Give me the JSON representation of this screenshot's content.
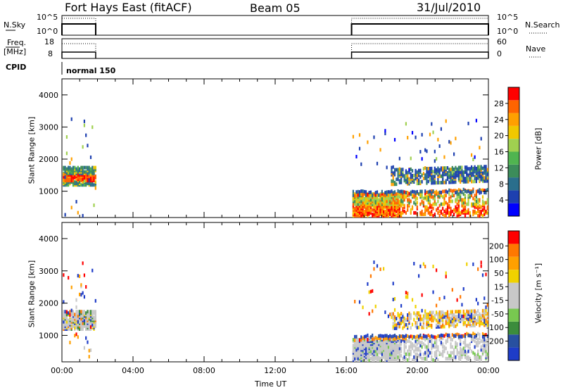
{
  "header": {
    "station": "Fort Hays East (fitACF)",
    "beam": "Beam 05",
    "date": "31/Jul/2010"
  },
  "left_labels": {
    "nsky": "N.Sky",
    "freq": "Freq.",
    "freq_unit": "[MHz]",
    "cpid": "CPID"
  },
  "right_labels": {
    "nsearch": "N.Search",
    "nave": "Nave"
  },
  "panel_labels": {
    "nsky_ticks": [
      "10^5",
      "10^0"
    ],
    "nsearch_ticks": [
      "10^5",
      "10^0"
    ],
    "freq_ticks": [
      "18",
      "8"
    ],
    "nave_ticks": [
      "60",
      "0"
    ],
    "cpid_text": "normal 150"
  },
  "chart_data": [
    {
      "type": "heatmap",
      "name": "power",
      "ylabel": "Slant Range [km]",
      "xlabel": "Time UT",
      "xticks": [
        "00:00",
        "04:00",
        "08:00",
        "12:00",
        "16:00",
        "20:00",
        "00:00"
      ],
      "xlim_hours": [
        0,
        24
      ],
      "yticks": [
        1000,
        2000,
        3000,
        4000
      ],
      "ylim": [
        180,
        4500
      ],
      "colorbar_label": "Power [dB]",
      "colorbar_ticks": [
        "4",
        "8",
        "12",
        "16",
        "20",
        "24",
        "28"
      ],
      "colorbar_colors": [
        "#0000ff",
        "#1e40b0",
        "#2a6e8c",
        "#3c8c5a",
        "#50b450",
        "#a0d050",
        "#f0c800",
        "#ffa000",
        "#ff6400",
        "#ff0000"
      ],
      "coverage_hours": [
        [
          0.0,
          1.9
        ],
        [
          16.3,
          24.0
        ]
      ]
    },
    {
      "type": "heatmap",
      "name": "velocity",
      "ylabel": "Slant Range [km]",
      "xlabel": "Time UT",
      "xticks": [
        "00:00",
        "04:00",
        "08:00",
        "12:00",
        "16:00",
        "20:00",
        "00:00"
      ],
      "xlim_hours": [
        0,
        24
      ],
      "yticks": [
        1000,
        2000,
        3000,
        4000
      ],
      "ylim": [
        180,
        4500
      ],
      "colorbar_label": "Velocity [m s⁻¹]",
      "colorbar_ticks": [
        "200",
        "100",
        "50",
        "15",
        "-15",
        "-50",
        "-100",
        "-200"
      ],
      "colorbar_colors": [
        "#1e3cc8",
        "#2850a0",
        "#3c8c3c",
        "#78c850",
        "#c8c8c8",
        "#c8c8c8",
        "#f0d200",
        "#ffa000",
        "#ff7800",
        "#ff0000"
      ],
      "coverage_hours": [
        [
          0.0,
          1.9
        ],
        [
          16.3,
          24.0
        ]
      ]
    }
  ]
}
